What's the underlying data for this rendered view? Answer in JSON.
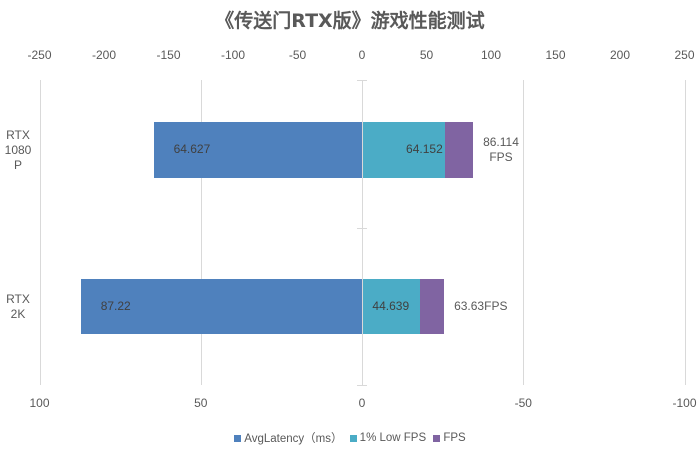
{
  "chart_data": {
    "type": "bar",
    "orientation": "horizontal",
    "stacked": true,
    "title": "《传送门RTX版》游戏性能测试",
    "categories": [
      "RTX 1080P",
      "RTX 2K"
    ],
    "category_labels": [
      [
        "RTX",
        "1080",
        "P"
      ],
      [
        "RTX",
        "2K"
      ]
    ],
    "series": [
      {
        "name": "AvgLatency（ms）",
        "color": "#4f81bd",
        "axis": "bottom",
        "values": [
          64.627,
          87.22
        ],
        "labels": [
          "64.627",
          "87.22"
        ]
      },
      {
        "name": "1% Low FPS",
        "color": "#4bacc6",
        "axis": "top",
        "values": [
          64.152,
          44.639
        ],
        "labels": [
          "64.152",
          "44.639"
        ]
      },
      {
        "name": "FPS",
        "color": "#8064a2",
        "axis": "top",
        "values": [
          86.114,
          63.63
        ],
        "labels": [
          [
            "86.114",
            "FPS"
          ],
          [
            "63.63FPS"
          ]
        ]
      }
    ],
    "top_axis": {
      "ticks": [
        "-250",
        "-200",
        "-150",
        "-100",
        "-50",
        "0",
        "50",
        "100",
        "150",
        "200",
        "250"
      ],
      "range": [
        -250,
        250
      ]
    },
    "bottom_axis": {
      "ticks": [
        "100",
        "50",
        "0",
        "-50",
        "-100"
      ],
      "range": [
        100,
        -100
      ],
      "reversed": true
    },
    "grid": true,
    "legend_position": "bottom"
  },
  "legend": {
    "items": [
      {
        "label": "AvgLatency（ms）",
        "color": "#4f81bd"
      },
      {
        "label": "1% Low FPS",
        "color": "#4bacc6"
      },
      {
        "label": "FPS",
        "color": "#8064a2"
      }
    ]
  }
}
